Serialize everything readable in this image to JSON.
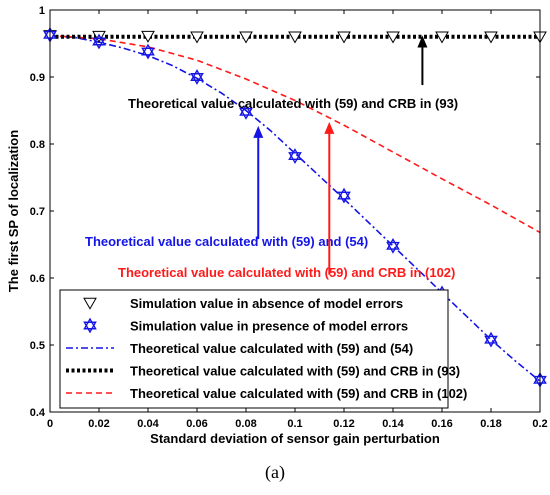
{
  "caption": "(a)",
  "chart_data": {
    "type": "line",
    "xlabel": "Standard deviation of sensor gain perturbation",
    "ylabel": "The first SP of localization",
    "xlim": [
      0,
      0.2
    ],
    "ylim": [
      0.4,
      1.0
    ],
    "x_ticks": [
      "0",
      "0.02",
      "0.04",
      "0.06",
      "0.08",
      "0.1",
      "0.12",
      "0.14",
      "0.16",
      "0.18",
      "0.2"
    ],
    "y_ticks": [
      "0.4",
      "0.5",
      "0.6",
      "0.7",
      "0.8",
      "0.9",
      "1"
    ],
    "grid": false,
    "legend_position": "bottom",
    "series": [
      {
        "name": "Simulation value in absence of model errors",
        "style": "markers",
        "marker": "down-triangle",
        "color": "#000000",
        "x": [
          0,
          0.02,
          0.04,
          0.06,
          0.08,
          0.1,
          0.12,
          0.14,
          0.16,
          0.18,
          0.2
        ],
        "y": [
          0.962,
          0.961,
          0.961,
          0.96,
          0.96,
          0.96,
          0.96,
          0.96,
          0.96,
          0.96,
          0.96
        ]
      },
      {
        "name": "Simulation value in presence of model errors",
        "style": "markers",
        "marker": "hexagram",
        "color": "#1414e6",
        "x": [
          0,
          0.02,
          0.04,
          0.06,
          0.08,
          0.1,
          0.12,
          0.14,
          0.16,
          0.18,
          0.2
        ],
        "y": [
          0.963,
          0.953,
          0.938,
          0.9,
          0.848,
          0.782,
          0.723,
          0.648,
          0.577,
          0.508,
          0.448
        ]
      },
      {
        "name": "Theoretical value calculated with (59) and (54)",
        "style": "dashdot",
        "color": "#1414e6",
        "x": [
          0,
          0.01,
          0.02,
          0.03,
          0.04,
          0.05,
          0.06,
          0.07,
          0.08,
          0.09,
          0.1,
          0.11,
          0.12,
          0.13,
          0.14,
          0.15,
          0.16,
          0.17,
          0.18,
          0.19,
          0.2
        ],
        "y": [
          0.962,
          0.959,
          0.952,
          0.943,
          0.932,
          0.917,
          0.898,
          0.876,
          0.85,
          0.82,
          0.786,
          0.752,
          0.718,
          0.683,
          0.648,
          0.613,
          0.578,
          0.543,
          0.508,
          0.476,
          0.446
        ]
      },
      {
        "name": "Theoretical value calculated with (59) and CRB in (93)",
        "style": "dotted-thick",
        "color": "#000000",
        "x": [
          0,
          0.2
        ],
        "y": [
          0.96,
          0.96
        ]
      },
      {
        "name": "Theoretical value calculated with (59) and CRB in (102)",
        "style": "dashed",
        "color": "#ff1a1a",
        "x": [
          0,
          0.02,
          0.04,
          0.06,
          0.08,
          0.1,
          0.12,
          0.14,
          0.16,
          0.18,
          0.2
        ],
        "y": [
          0.962,
          0.957,
          0.945,
          0.925,
          0.897,
          0.865,
          0.828,
          0.788,
          0.748,
          0.709,
          0.668
        ]
      }
    ],
    "annotations": [
      {
        "text": "Theoretical value calculated with (59) and CRB in (93)",
        "color": "#000000",
        "arrow_from": [
          0.152,
          0.888
        ],
        "arrow_to": [
          0.152,
          0.962
        ]
      },
      {
        "text": "Theoretical value calculated with (59) and (54)",
        "color": "#1414e6",
        "arrow_from": [
          0.085,
          0.658
        ],
        "arrow_to": [
          0.085,
          0.827
        ]
      },
      {
        "text": "Theoretical value calculated with (59) and CRB in (102)",
        "color": "#ff1a1a",
        "arrow_from": [
          0.114,
          0.605
        ],
        "arrow_to": [
          0.114,
          0.833
        ]
      }
    ]
  }
}
